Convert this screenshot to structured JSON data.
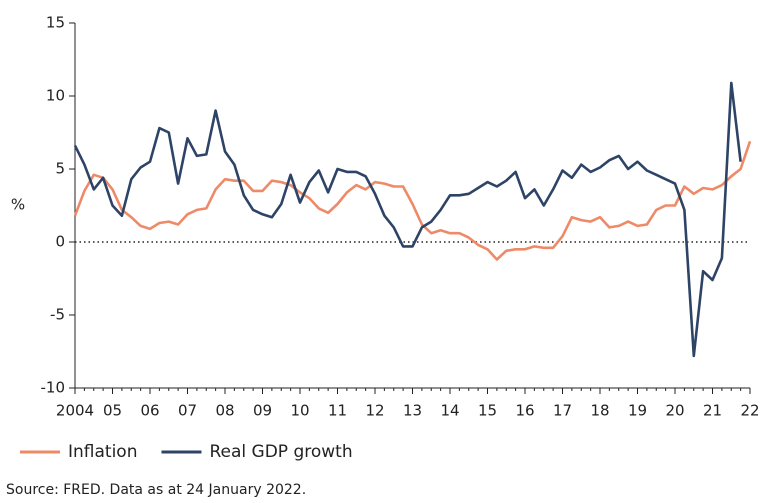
{
  "chart_data": {
    "type": "line",
    "y_label": "%",
    "source": "Source: FRED. Data as at 24 January 2022.",
    "xlim": [
      2004,
      2022
    ],
    "ylim": [
      -10,
      15
    ],
    "yticks": [
      15,
      10,
      5,
      0,
      -5,
      -10
    ],
    "xticks": [
      2004,
      {
        "value": 2005,
        "label": "05"
      },
      {
        "value": 2006,
        "label": "06"
      },
      {
        "value": 2007,
        "label": "07"
      },
      {
        "value": 2008,
        "label": "08"
      },
      {
        "value": 2009,
        "label": "09"
      },
      {
        "value": 2010,
        "label": "10"
      },
      {
        "value": 2011,
        "label": "11"
      },
      {
        "value": 2012,
        "label": "12"
      },
      {
        "value": 2013,
        "label": "13"
      },
      {
        "value": 2014,
        "label": "14"
      },
      {
        "value": 2015,
        "label": "15"
      },
      {
        "value": 2016,
        "label": "16"
      },
      {
        "value": 2017,
        "label": "17"
      },
      {
        "value": 2018,
        "label": "18"
      },
      {
        "value": 2019,
        "label": "19"
      },
      {
        "value": 2020,
        "label": "20"
      },
      {
        "value": 2021,
        "label": "21"
      },
      {
        "value": 2022,
        "label": "22"
      }
    ],
    "zero_line": true,
    "x": [
      2004,
      2004.25,
      2004.5,
      2004.75,
      2005,
      2005.25,
      2005.5,
      2005.75,
      2006,
      2006.25,
      2006.5,
      2006.75,
      2007,
      2007.25,
      2007.5,
      2007.75,
      2008,
      2008.25,
      2008.5,
      2008.75,
      2009,
      2009.25,
      2009.5,
      2009.75,
      2010,
      2010.25,
      2010.5,
      2010.75,
      2011,
      2011.25,
      2011.5,
      2011.75,
      2012,
      2012.25,
      2012.5,
      2012.75,
      2013,
      2013.25,
      2013.5,
      2013.75,
      2014,
      2014.25,
      2014.5,
      2014.75,
      2015,
      2015.25,
      2015.5,
      2015.75,
      2016,
      2016.25,
      2016.5,
      2016.75,
      2017,
      2017.25,
      2017.5,
      2017.75,
      2018,
      2018.25,
      2018.5,
      2018.75,
      2019,
      2019.25,
      2019.5,
      2019.75,
      2020,
      2020.25,
      2020.5,
      2020.75,
      2021,
      2021.25,
      2021.5,
      2021.75,
      2022
    ],
    "series": [
      {
        "name": "Inflation",
        "color": "#ee8a68",
        "values": [
          1.8,
          3.5,
          4.6,
          4.4,
          3.6,
          2.2,
          1.7,
          1.1,
          0.9,
          1.3,
          1.4,
          1.2,
          1.9,
          2.2,
          2.3,
          3.6,
          4.3,
          4.2,
          4.2,
          3.5,
          3.5,
          4.2,
          4.1,
          3.9,
          3.4,
          3.0,
          2.3,
          2.0,
          2.6,
          3.4,
          3.9,
          3.6,
          4.1,
          4.0,
          3.8,
          3.8,
          2.6,
          1.2,
          0.6,
          0.8,
          0.6,
          0.6,
          0.3,
          -0.2,
          -0.5,
          -1.2,
          -0.6,
          -0.5,
          -0.5,
          -0.3,
          -0.4,
          -0.4,
          0.4,
          1.7,
          1.5,
          1.4,
          1.7,
          1.0,
          1.1,
          1.4,
          1.1,
          1.2,
          2.2,
          2.5,
          2.5,
          3.8,
          3.3,
          3.7,
          3.6,
          3.9,
          4.5,
          5.0,
          6.9
        ]
      },
      {
        "name": "Real GDP growth",
        "color": "#2e4466",
        "values": [
          6.6,
          5.3,
          3.6,
          4.4,
          2.5,
          1.8,
          4.3,
          5.1,
          5.5,
          7.8,
          7.5,
          4.0,
          7.1,
          5.9,
          6.0,
          9.0,
          6.2,
          5.3,
          3.2,
          2.2,
          1.9,
          1.7,
          2.6,
          4.6,
          2.7,
          4.1,
          4.9,
          3.4,
          5.0,
          4.8,
          4.8,
          4.5,
          3.3,
          1.8,
          1.0,
          -0.3,
          -0.3,
          1.0,
          1.4,
          2.2,
          3.2,
          3.2,
          3.3,
          3.7,
          4.1,
          3.8,
          4.2,
          4.8,
          3.0,
          3.6,
          2.5,
          3.6,
          4.9,
          4.4,
          5.3,
          4.8,
          5.1,
          5.6,
          5.9,
          5.0,
          5.5,
          4.9,
          4.6,
          4.3,
          4.0,
          2.2,
          -7.8,
          -2.0,
          -2.6,
          -1.1,
          10.9,
          5.5,
          null
        ]
      }
    ]
  }
}
